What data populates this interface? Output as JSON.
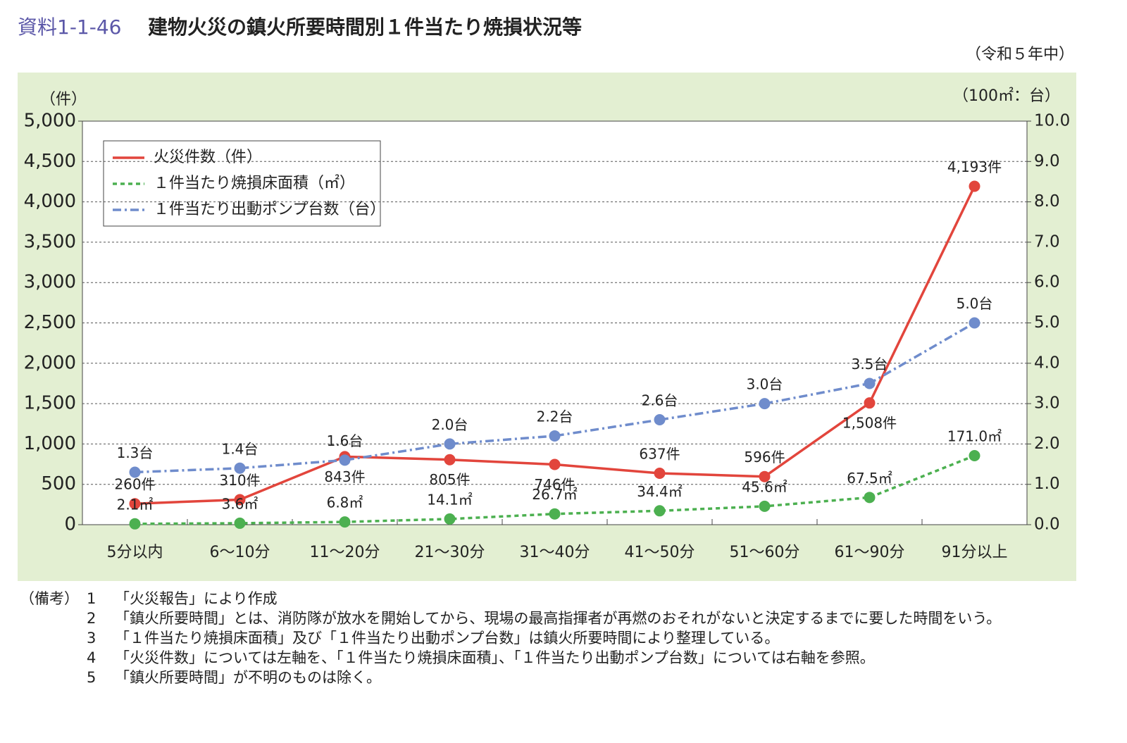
{
  "header": {
    "label": "資料1-1-46",
    "title": "建物火災の鎮火所要時間別１件当たり焼損状況等",
    "subtitle": "（令和５年中）"
  },
  "chart_data": {
    "type": "line",
    "y_label": "（件）",
    "y2_label": "（100㎡：台）",
    "categories": [
      "5分以内",
      "6～10分",
      "11～20分",
      "21～30分",
      "31～40分",
      "41～50分",
      "51～60分",
      "61～90分",
      "91分以上"
    ],
    "ylim": [
      0,
      5000
    ],
    "yticks": [
      0,
      500,
      {
        "value": 1000,
        "label": "1,000"
      },
      {
        "value": 1500,
        "label": "1,500"
      },
      {
        "value": 2000,
        "label": "2,000"
      },
      {
        "value": 2500,
        "label": "2,500"
      },
      {
        "value": 3000,
        "label": "3,000"
      },
      {
        "value": 3500,
        "label": "3,500"
      },
      {
        "value": 4000,
        "label": "4,000"
      },
      {
        "value": 4500,
        "label": "4,500"
      },
      {
        "value": 5000,
        "label": "5,000"
      }
    ],
    "y2lim": [
      0,
      10
    ],
    "y2ticks": [
      {
        "value": 0,
        "label": "0.0"
      },
      {
        "value": 1,
        "label": "1.0"
      },
      {
        "value": 2,
        "label": "2.0"
      },
      {
        "value": 3,
        "label": "3.0"
      },
      {
        "value": 4,
        "label": "4.0"
      },
      {
        "value": 5,
        "label": "5.0"
      },
      {
        "value": 6,
        "label": "6.0"
      },
      {
        "value": 7,
        "label": "7.0"
      },
      {
        "value": 8,
        "label": "8.0"
      },
      {
        "value": 9,
        "label": "9.0"
      },
      {
        "value": 10,
        "label": "10.0"
      }
    ],
    "grid": true,
    "legend": "upper left",
    "series": [
      {
        "name": "火災件数（件）",
        "color": "#e2453c",
        "line_style": "solid",
        "axis": "y",
        "values": [
          260,
          310,
          843,
          805,
          746,
          637,
          596,
          1508,
          4193
        ],
        "value_labels": [
          "260件",
          "310件",
          "843件",
          "805件",
          "746件",
          "637件",
          "596件",
          "1,508件",
          "4,193件"
        ]
      },
      {
        "name": "１件当たり焼損床面積（㎡）",
        "color": "#4cb050",
        "line_style": "dashed",
        "axis": "y2",
        "values": [
          0.021,
          0.036,
          0.068,
          0.141,
          0.267,
          0.344,
          0.456,
          0.675,
          1.71
        ],
        "value_labels": [
          "2.1㎡",
          "3.6㎡",
          "6.8㎡",
          "14.1㎡",
          "26.7㎡",
          "34.4㎡",
          "45.6㎡",
          "67.5㎡",
          "171.0㎡"
        ]
      },
      {
        "name": "１件当たり出動ポンプ台数（台）",
        "color": "#6f8ccc",
        "line_style": "dashdot",
        "axis": "y2",
        "values": [
          1.3,
          1.4,
          1.6,
          2.0,
          2.2,
          2.6,
          3.0,
          3.5,
          5.0
        ],
        "value_labels": [
          "1.3台",
          "1.4台",
          "1.6台",
          "2.0台",
          "2.2台",
          "2.6台",
          "3.0台",
          "3.5台",
          "5.0台"
        ]
      }
    ]
  },
  "notes": {
    "label": "（備考）",
    "items": [
      {
        "number": "1",
        "text": "「火災報告」により作成"
      },
      {
        "number": "2",
        "text": "「鎮火所要時間」とは、消防隊が放水を開始してから、現場の最高指揮者が再燃のおそれがないと決定するまでに要した時間をいう。"
      },
      {
        "number": "3",
        "text": "「１件当たり焼損床面積」及び「１件当たり出動ポンプ台数」は鎮火所要時間により整理している。"
      },
      {
        "number": "4",
        "text": "「火災件数」については左軸を、「１件当たり焼損床面積」、「１件当たり出動ポンプ台数」については右軸を参照。"
      },
      {
        "number": "5",
        "text": "「鎮火所要時間」が不明のものは除く。"
      }
    ]
  }
}
